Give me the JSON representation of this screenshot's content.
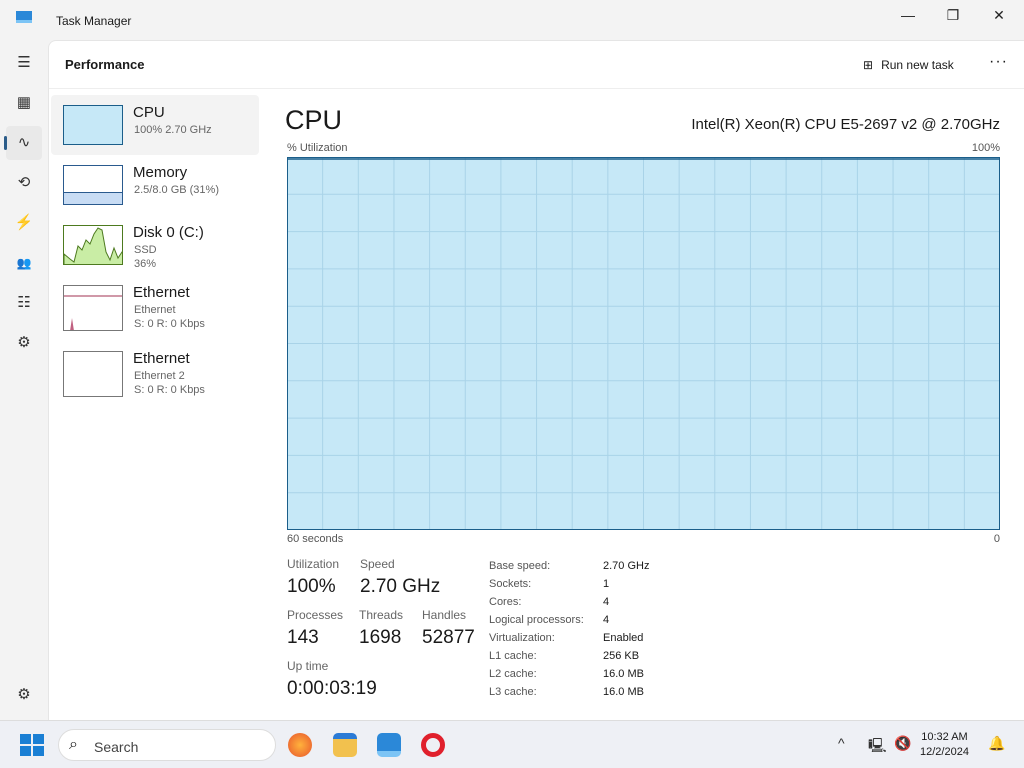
{
  "window": {
    "title": "Task Manager",
    "icon": "task-manager-icon"
  },
  "nav": {
    "items": [
      {
        "name": "hamburger-menu",
        "icon": "☰"
      },
      {
        "name": "processes",
        "icon": "▦"
      },
      {
        "name": "performance",
        "icon": "∿"
      },
      {
        "name": "app-history",
        "icon": "⟲"
      },
      {
        "name": "startup-apps",
        "icon": "⚡"
      },
      {
        "name": "users",
        "icon": "👥"
      },
      {
        "name": "details",
        "icon": "☷"
      },
      {
        "name": "services",
        "icon": "⚙"
      }
    ],
    "settings_icon": "⚙"
  },
  "header": {
    "title": "Performance",
    "run_new_task": "Run new task",
    "more": "···"
  },
  "resources": [
    {
      "name": "CPU",
      "sub1": "100% 2.70 GHz"
    },
    {
      "name": "Memory",
      "sub1": "2.5/8.0 GB (31%)"
    },
    {
      "name": "Disk 0 (C:)",
      "sub1": "SSD",
      "sub2": "36%"
    },
    {
      "name": "Ethernet",
      "sub1": "Ethernet",
      "sub2": "S: 0 R: 0 Kbps"
    },
    {
      "name": "Ethernet",
      "sub1": "Ethernet 2",
      "sub2": "S: 0 R: 0 Kbps"
    }
  ],
  "cpu": {
    "heading": "CPU",
    "model": "Intel(R) Xeon(R) CPU E5-2697 v2 @ 2.70GHz",
    "y_label": "% Utilization",
    "y_max": "100%",
    "x_left": "60 seconds",
    "x_right": "0",
    "utilization_percent": 100,
    "fill_color": "#c6e8f7",
    "line_color": "#1b5e8a"
  },
  "stats": {
    "utilization_label": "Utilization",
    "utilization": "100%",
    "speed_label": "Speed",
    "speed": "2.70 GHz",
    "processes_label": "Processes",
    "processes": "143",
    "threads_label": "Threads",
    "threads": "1698",
    "handles_label": "Handles",
    "handles": "52877",
    "uptime_label": "Up time",
    "uptime": "0:00:03:19"
  },
  "specs": [
    [
      "Base speed:",
      "2.70 GHz"
    ],
    [
      "Sockets:",
      "1"
    ],
    [
      "Cores:",
      "4"
    ],
    [
      "Logical processors:",
      "4"
    ],
    [
      "Virtualization:",
      "Enabled"
    ],
    [
      "L1 cache:",
      "256 KB"
    ],
    [
      "L2 cache:",
      "16.0 MB"
    ],
    [
      "L3 cache:",
      "16.0 MB"
    ]
  ],
  "taskbar": {
    "search_placeholder": "Search",
    "time": "10:32 AM",
    "date": "12/2/2024"
  }
}
